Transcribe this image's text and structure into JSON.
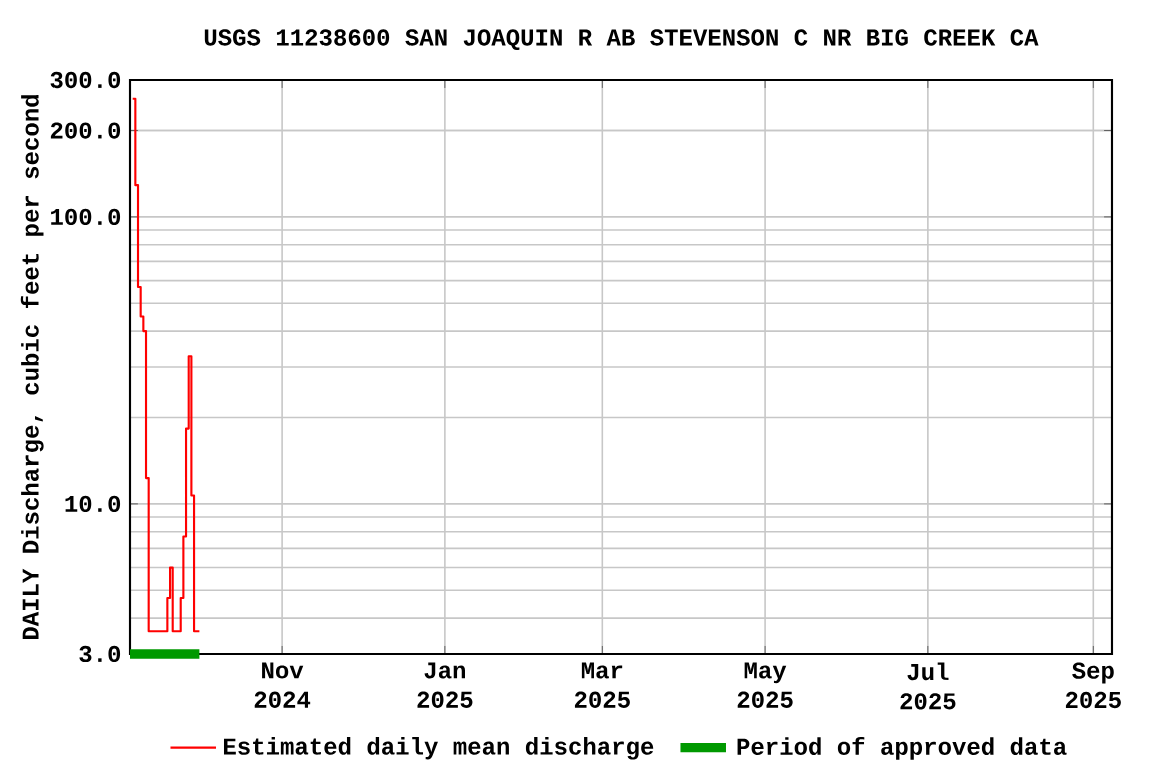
{
  "chart_data": {
    "type": "step",
    "title": "USGS 11238600 SAN JOAQUIN R AB STEVENSON C NR BIG CREEK CA",
    "ylabel": "DAILY Discharge, cubic feet per second",
    "log": "y",
    "grid": true,
    "legend": "bottom",
    "marker": "none",
    "xlim": [
      "2024-09-05",
      "2025-09-08"
    ],
    "xticks": [
      {
        "value": "2024-11-01",
        "label": "Nov 2024"
      },
      {
        "value": "2025-01-01",
        "label": "Jan 2025"
      },
      {
        "value": "2025-03-01",
        "label": "Mar 2025"
      },
      {
        "value": "2025-05-01",
        "label": "May 2025"
      },
      {
        "value": "2025-07-01",
        "label": "Jul 2025"
      },
      {
        "value": "2025-09-01",
        "label": "Sep 2025"
      }
    ],
    "ylim": [
      3,
      300
    ],
    "yticks": [
      {
        "value": 3,
        "label": "3.0"
      },
      {
        "value": 10,
        "label": "10.0"
      },
      {
        "value": 100,
        "label": "100.0"
      },
      {
        "value": 200,
        "label": "200.0"
      },
      {
        "value": 300,
        "label": "300.0"
      }
    ],
    "series": [
      {
        "name": "Estimated daily mean discharge",
        "color": "#ff0000",
        "x": [
          "2024-09-06",
          "2024-09-07",
          "2024-09-08",
          "2024-09-09",
          "2024-09-10",
          "2024-09-11",
          "2024-09-12",
          "2024-09-19",
          "2024-09-20",
          "2024-09-21",
          "2024-09-24",
          "2024-09-25",
          "2024-09-26",
          "2024-09-27",
          "2024-09-28",
          "2024-09-29",
          "2024-10-01"
        ],
        "values": [
          258,
          129,
          57,
          45,
          40,
          12.3,
          3.6,
          4.7,
          6.0,
          3.6,
          4.7,
          7.7,
          18.3,
          32.7,
          10.7,
          3.6,
          3.6
        ]
      },
      {
        "name": "Period of approved data",
        "type": "line",
        "color": "#009900",
        "x": [
          "2024-09-05",
          "2024-10-01"
        ],
        "values": [
          3,
          3
        ]
      }
    ]
  }
}
